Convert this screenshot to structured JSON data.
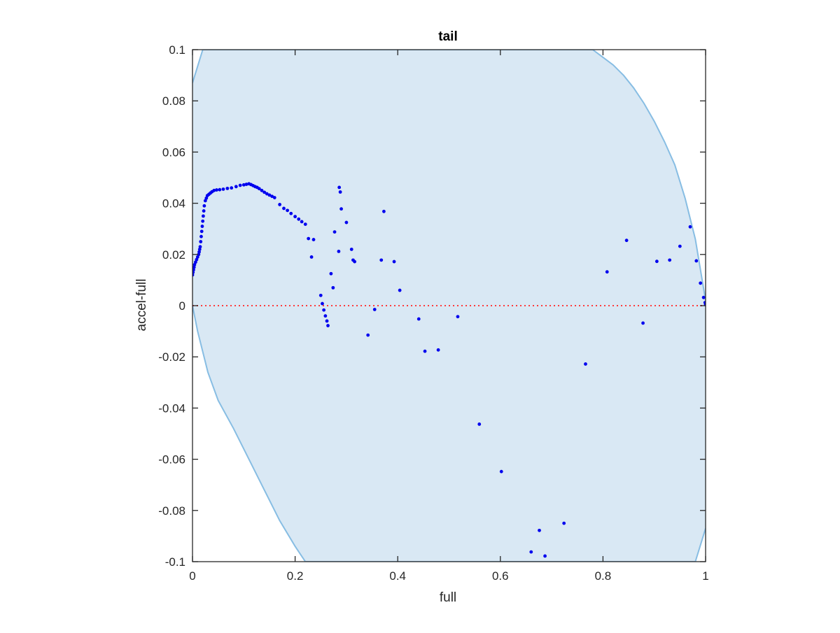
{
  "chart_data": {
    "type": "scatter",
    "title": "tail",
    "xlabel": "full",
    "ylabel": "accel-full",
    "xlim": [
      0,
      1
    ],
    "ylim": [
      -0.1,
      0.1
    ],
    "x_ticks": [
      0,
      0.2,
      0.4,
      0.6,
      0.8,
      1
    ],
    "x_tick_labels": [
      "0",
      "0.2",
      "0.4",
      "0.6",
      "0.8",
      "1"
    ],
    "y_ticks": [
      -0.1,
      -0.08,
      -0.06,
      -0.04,
      -0.02,
      0,
      0.02,
      0.04,
      0.06,
      0.08,
      0.1
    ],
    "y_tick_labels": [
      "-0.1",
      "-0.08",
      "-0.06",
      "-0.04",
      "-0.02",
      "0",
      "0.02",
      "0.04",
      "0.06",
      "0.08",
      "0.1"
    ],
    "grid": false,
    "colors": {
      "band_fill": "#d9e8f4",
      "band_edge": "#87bde3",
      "points": "#0000ee",
      "zero_line": "#ff3b3b",
      "axes": "#262626"
    },
    "band": {
      "upper": [
        [
          0,
          0.087
        ],
        [
          0.02,
          0.1
        ],
        [
          0.78,
          0.1
        ],
        [
          0.8,
          0.097
        ],
        [
          0.82,
          0.094
        ],
        [
          0.84,
          0.09
        ],
        [
          0.86,
          0.085
        ],
        [
          0.88,
          0.079
        ],
        [
          0.9,
          0.072
        ],
        [
          0.92,
          0.064
        ],
        [
          0.94,
          0.055
        ],
        [
          0.96,
          0.042
        ],
        [
          0.98,
          0.026
        ],
        [
          1.0,
          0.002
        ]
      ],
      "lower": [
        [
          0,
          0
        ],
        [
          0.01,
          -0.01
        ],
        [
          0.03,
          -0.026
        ],
        [
          0.05,
          -0.037
        ],
        [
          0.08,
          -0.048
        ],
        [
          0.11,
          -0.06
        ],
        [
          0.14,
          -0.072
        ],
        [
          0.17,
          -0.084
        ],
        [
          0.2,
          -0.094
        ],
        [
          0.22,
          -0.1
        ],
        [
          0.98,
          -0.1
        ],
        [
          1.0,
          -0.087
        ]
      ]
    },
    "series": [
      {
        "values": [
          [
            0.0,
            0.012
          ],
          [
            0.001,
            0.013
          ],
          [
            0.002,
            0.014
          ],
          [
            0.003,
            0.015
          ],
          [
            0.004,
            0.016
          ],
          [
            0.006,
            0.017
          ],
          [
            0.008,
            0.018
          ],
          [
            0.01,
            0.019
          ],
          [
            0.012,
            0.02
          ],
          [
            0.013,
            0.021
          ],
          [
            0.014,
            0.022
          ],
          [
            0.015,
            0.023
          ],
          [
            0.016,
            0.025
          ],
          [
            0.017,
            0.027
          ],
          [
            0.018,
            0.029
          ],
          [
            0.019,
            0.031
          ],
          [
            0.02,
            0.033
          ],
          [
            0.021,
            0.035
          ],
          [
            0.022,
            0.037
          ],
          [
            0.023,
            0.039
          ],
          [
            0.025,
            0.041
          ],
          [
            0.027,
            0.042
          ],
          [
            0.029,
            0.043
          ],
          [
            0.032,
            0.0435
          ],
          [
            0.035,
            0.044
          ],
          [
            0.038,
            0.0445
          ],
          [
            0.042,
            0.045
          ],
          [
            0.047,
            0.0452
          ],
          [
            0.053,
            0.0453
          ],
          [
            0.06,
            0.0455
          ],
          [
            0.068,
            0.0458
          ],
          [
            0.076,
            0.046
          ],
          [
            0.085,
            0.0465
          ],
          [
            0.093,
            0.047
          ],
          [
            0.1,
            0.0472
          ],
          [
            0.105,
            0.0474
          ],
          [
            0.11,
            0.0476
          ],
          [
            0.114,
            0.0473
          ],
          [
            0.118,
            0.0469
          ],
          [
            0.122,
            0.0465
          ],
          [
            0.126,
            0.0462
          ],
          [
            0.13,
            0.0457
          ],
          [
            0.135,
            0.045
          ],
          [
            0.14,
            0.0443
          ],
          [
            0.145,
            0.0437
          ],
          [
            0.15,
            0.0432
          ],
          [
            0.155,
            0.0427
          ],
          [
            0.16,
            0.0422
          ],
          [
            0.17,
            0.0395
          ],
          [
            0.178,
            0.038
          ],
          [
            0.185,
            0.0372
          ],
          [
            0.192,
            0.036
          ],
          [
            0.2,
            0.0348
          ],
          [
            0.207,
            0.0338
          ],
          [
            0.213,
            0.0328
          ],
          [
            0.22,
            0.0318
          ],
          [
            0.226,
            0.0262
          ],
          [
            0.232,
            0.019
          ],
          [
            0.236,
            0.0258
          ],
          [
            0.25,
            0.004
          ],
          [
            0.253,
            0.0008
          ],
          [
            0.256,
            -0.0017
          ],
          [
            0.259,
            -0.004
          ],
          [
            0.262,
            -0.006
          ],
          [
            0.264,
            -0.0078
          ],
          [
            0.27,
            0.0125
          ],
          [
            0.274,
            0.007
          ],
          [
            0.277,
            0.0288
          ],
          [
            0.286,
            0.0462
          ],
          [
            0.288,
            0.0444
          ],
          [
            0.285,
            0.0212
          ],
          [
            0.29,
            0.0378
          ],
          [
            0.3,
            0.0325
          ],
          [
            0.31,
            0.022
          ],
          [
            0.313,
            0.0178
          ],
          [
            0.316,
            0.0172
          ],
          [
            0.342,
            -0.0115
          ],
          [
            0.355,
            -0.0015
          ],
          [
            0.368,
            0.0178
          ],
          [
            0.373,
            0.0368
          ],
          [
            0.393,
            0.0172
          ],
          [
            0.404,
            0.006
          ],
          [
            0.441,
            -0.0052
          ],
          [
            0.453,
            -0.0178
          ],
          [
            0.479,
            -0.0173
          ],
          [
            0.517,
            -0.0043
          ],
          [
            0.559,
            -0.0463
          ],
          [
            0.602,
            -0.0648
          ],
          [
            0.66,
            -0.0962
          ],
          [
            0.676,
            -0.0878
          ],
          [
            0.687,
            -0.0978
          ],
          [
            0.724,
            -0.085
          ],
          [
            0.766,
            -0.0228
          ],
          [
            0.808,
            0.0132
          ],
          [
            0.846,
            0.0255
          ],
          [
            0.878,
            -0.0068
          ],
          [
            0.905,
            0.0173
          ],
          [
            0.93,
            0.0178
          ],
          [
            0.95,
            0.0232
          ],
          [
            0.97,
            0.0308
          ],
          [
            0.982,
            0.0175
          ],
          [
            0.99,
            0.0088
          ],
          [
            0.996,
            0.0032
          ],
          [
            0.999,
            0.0012
          ],
          [
            1.0,
            0.0004
          ]
        ]
      }
    ]
  }
}
